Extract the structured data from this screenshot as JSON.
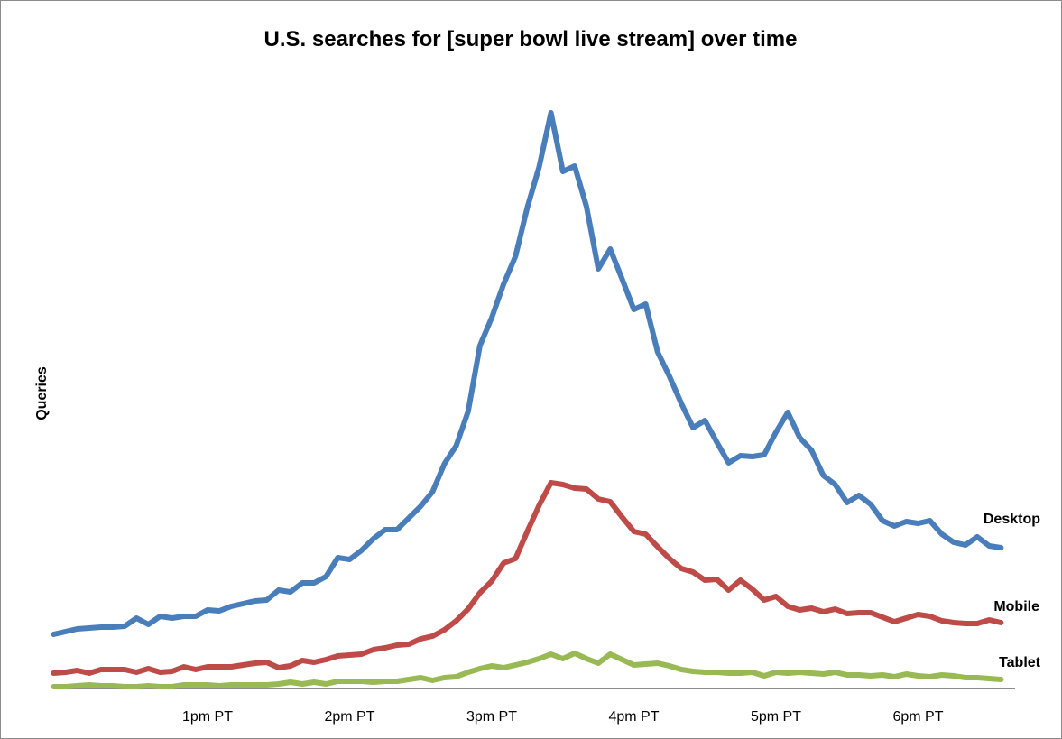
{
  "chart_data": {
    "type": "line",
    "title": "U.S. searches for [super bowl live stream] over time",
    "xlabel": "",
    "ylabel": "Queries",
    "x_unit": "minutes relative to 1pm PT",
    "x_start": -65,
    "x_step": 5,
    "xlim": [
      -70,
      345
    ],
    "ylim": [
      0,
      660
    ],
    "grid": false,
    "legend": "inline labels at right end of lines",
    "x_ticks": [
      {
        "label": "1pm PT",
        "value": 0
      },
      {
        "label": "2pm PT",
        "value": 60
      },
      {
        "label": "3pm PT",
        "value": 120
      },
      {
        "label": "4pm PT",
        "value": 180
      },
      {
        "label": "5pm PT",
        "value": 240
      },
      {
        "label": "6pm PT",
        "value": 300
      }
    ],
    "series": [
      {
        "name": "Desktop",
        "color": "#4a7ebb",
        "values": [
          60,
          63,
          66,
          67,
          68,
          68,
          69,
          78,
          71,
          80,
          78,
          80,
          80,
          87,
          86,
          91,
          94,
          97,
          98,
          109,
          107,
          117,
          117,
          124,
          145,
          143,
          153,
          166,
          176,
          176,
          189,
          202,
          218,
          249,
          269,
          307,
          380,
          411,
          448,
          479,
          533,
          578,
          638,
          573,
          579,
          534,
          465,
          487,
          454,
          420,
          426,
          373,
          346,
          316,
          289,
          297,
          273,
          250,
          258,
          257,
          259,
          284,
          306,
          278,
          264,
          236,
          226,
          206,
          214,
          204,
          186,
          180,
          185,
          183,
          186,
          171,
          162,
          159,
          168,
          158,
          156
        ]
      },
      {
        "name": "Mobile",
        "color": "#be4b48",
        "values": [
          17,
          18,
          20,
          17,
          21,
          21,
          21,
          18,
          22,
          18,
          19,
          24,
          21,
          24,
          24,
          24,
          26,
          28,
          29,
          23,
          25,
          31,
          29,
          32,
          36,
          37,
          38,
          43,
          45,
          48,
          49,
          55,
          58,
          65,
          75,
          88,
          106,
          119,
          139,
          144,
          174,
          203,
          228,
          226,
          222,
          221,
          210,
          207,
          190,
          174,
          171,
          157,
          144,
          133,
          129,
          120,
          121,
          109,
          120,
          110,
          98,
          102,
          91,
          87,
          89,
          85,
          88,
          83,
          84,
          84,
          79,
          74,
          78,
          82,
          80,
          75,
          73,
          72,
          72,
          76,
          73
        ]
      },
      {
        "name": "Tablet",
        "color": "#98b954",
        "values": [
          2,
          2,
          3,
          4,
          3,
          3,
          2,
          2,
          3,
          2,
          2,
          4,
          4,
          4,
          3,
          4,
          4,
          4,
          4,
          5,
          7,
          5,
          7,
          5,
          8,
          8,
          8,
          7,
          8,
          8,
          10,
          12,
          9,
          12,
          13,
          18,
          22,
          25,
          23,
          26,
          29,
          33,
          38,
          33,
          39,
          33,
          28,
          38,
          32,
          26,
          27,
          28,
          25,
          21,
          19,
          18,
          18,
          17,
          17,
          18,
          14,
          18,
          17,
          18,
          17,
          16,
          18,
          15,
          15,
          14,
          15,
          13,
          16,
          14,
          13,
          15,
          14,
          12,
          12,
          11,
          10
        ]
      }
    ]
  }
}
